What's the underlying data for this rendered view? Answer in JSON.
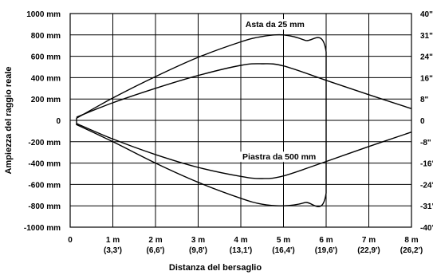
{
  "chart_data": {
    "type": "line",
    "xlabel": "Distanza del bersaglio",
    "ylabel": "Ampiezza del raggio reale",
    "xlim": [
      0,
      8
    ],
    "ylim": [
      -1000,
      1000
    ],
    "grid": true,
    "x_ticks": [
      {
        "value": 0,
        "label": "0",
        "sublabel": ""
      },
      {
        "value": 1,
        "label": "1 m",
        "sublabel": "(3,3')"
      },
      {
        "value": 2,
        "label": "2 m",
        "sublabel": "(6,6')"
      },
      {
        "value": 3,
        "label": "3 m",
        "sublabel": "(9,8')"
      },
      {
        "value": 4,
        "label": "4 m",
        "sublabel": "(13,1')"
      },
      {
        "value": 5,
        "label": "5 m",
        "sublabel": "(16,4')"
      },
      {
        "value": 6,
        "label": "6 m",
        "sublabel": "(19,6')"
      },
      {
        "value": 7,
        "label": "7 m",
        "sublabel": "(22,9')"
      },
      {
        "value": 8,
        "label": "8 m",
        "sublabel": "(26,2')"
      }
    ],
    "y_ticks_left": [
      {
        "value": 1000,
        "label": "1000 mm"
      },
      {
        "value": 800,
        "label": "800 mm"
      },
      {
        "value": 600,
        "label": "600 mm"
      },
      {
        "value": 400,
        "label": "400 mm"
      },
      {
        "value": 200,
        "label": "200 mm"
      },
      {
        "value": 0,
        "label": "0"
      },
      {
        "value": -200,
        "label": "-200 mm"
      },
      {
        "value": -400,
        "label": "-400 mm"
      },
      {
        "value": -600,
        "label": "-600 mm"
      },
      {
        "value": -800,
        "label": "-800 mm"
      },
      {
        "value": -1000,
        "label": "-1000 mm"
      }
    ],
    "y_ticks_right": [
      {
        "value": 1000,
        "label": "40\""
      },
      {
        "value": 800,
        "label": "31\""
      },
      {
        "value": 600,
        "label": "24\""
      },
      {
        "value": 400,
        "label": "16\""
      },
      {
        "value": 200,
        "label": "8\""
      },
      {
        "value": 0,
        "label": "0"
      },
      {
        "value": -200,
        "label": "-8\""
      },
      {
        "value": -400,
        "label": "-16\""
      },
      {
        "value": -600,
        "label": "-24\""
      },
      {
        "value": -800,
        "label": "-31\""
      },
      {
        "value": -1000,
        "label": "-40\""
      }
    ],
    "series": [
      {
        "name": "Asta da 25 mm",
        "closed": true,
        "x": [
          0.15,
          1,
          2,
          3,
          4,
          4.5,
          5,
          5.5,
          6,
          6,
          5.5,
          5,
          4.5,
          4,
          3,
          2,
          1,
          0.15
        ],
        "y": [
          20,
          210,
          410,
          590,
          735,
          785,
          800,
          750,
          640,
          -680,
          -770,
          -800,
          -785,
          -730,
          -580,
          -400,
          -200,
          -40
        ]
      },
      {
        "name": "Piastra da 500 mm",
        "closed": false,
        "x": [
          0.15,
          1,
          2,
          3,
          4,
          4.5,
          5,
          6,
          7,
          8
        ],
        "y": [
          -30,
          -175,
          -320,
          -440,
          -525,
          -545,
          -520,
          -385,
          -245,
          -110
        ]
      },
      {
        "name": "Piastra da 500 mm (upper)",
        "closed": false,
        "x": [
          0.15,
          1,
          2,
          3,
          4,
          4.5,
          5,
          6,
          7,
          8
        ],
        "y": [
          30,
          165,
          300,
          420,
          515,
          530,
          510,
          375,
          240,
          110
        ]
      }
    ],
    "annotations": [
      {
        "text": "Asta da 25 mm",
        "x": 4.8,
        "y": 880
      },
      {
        "text": "Piastra da 500 mm",
        "x": 4.9,
        "y": -360
      }
    ]
  }
}
